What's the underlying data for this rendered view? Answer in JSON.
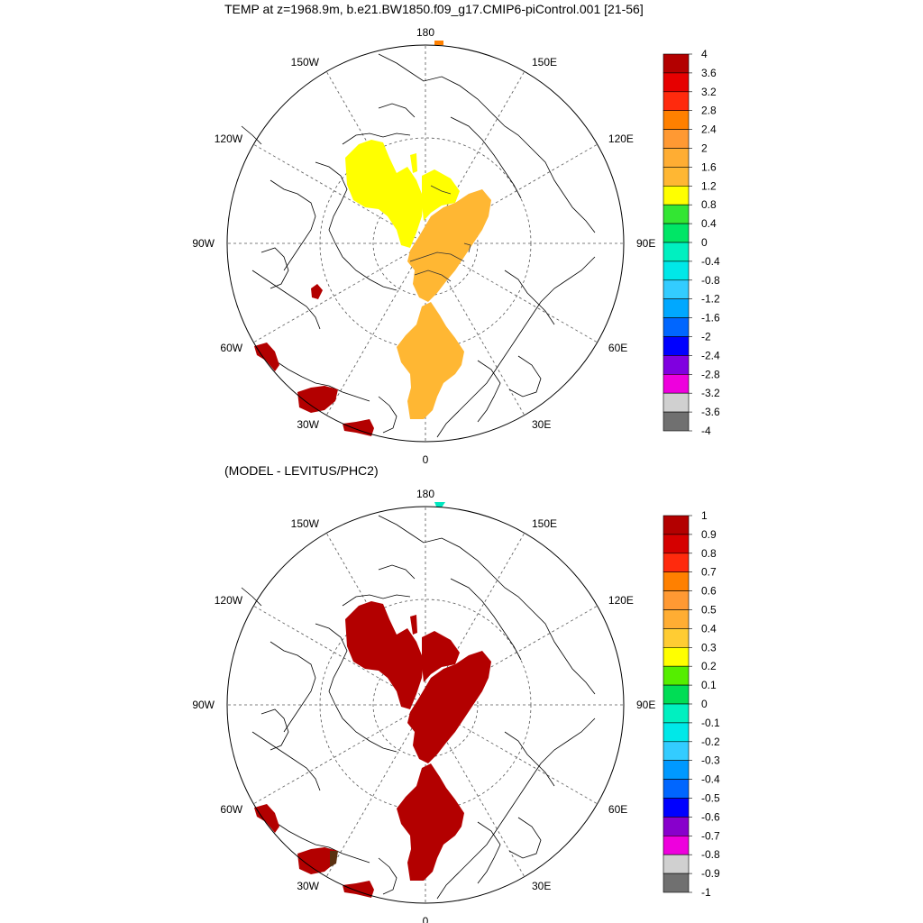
{
  "panels": [
    {
      "title": "TEMP at z=1968.9m, b.e21.BW1850.f09_g17.CMIP6-piControl.001 [21-56]",
      "longitude_labels": [
        "180",
        "150E",
        "120E",
        "90E",
        "60E",
        "30E",
        "0",
        "30W",
        "60W",
        "90W",
        "120W",
        "150W"
      ],
      "colorbar": {
        "labels": [
          "4",
          "3.6",
          "3.2",
          "2.8",
          "2.4",
          "2",
          "1.6",
          "1.2",
          "0.8",
          "0.4",
          "0",
          "-0.4",
          "-0.8",
          "-1.2",
          "-1.6",
          "-2",
          "-2.4",
          "-2.8",
          "-3.2",
          "-3.6",
          "-4"
        ],
        "colors": [
          "#b30000",
          "#e60000",
          "#ff2a0d",
          "#ff8000",
          "#ff9933",
          "#ffad33",
          "#ffb733",
          "#ffff00",
          "#33e633",
          "#00e666",
          "#00f0c0",
          "#00e8e8",
          "#33ccff",
          "#00a8ff",
          "#0066ff",
          "#0000ff",
          "#8000e0",
          "#ee00dd",
          "#d0d0d0",
          "#707070"
        ]
      }
    },
    {
      "title": "(MODEL - LEVITUS/PHC2)",
      "longitude_labels": [
        "180",
        "150E",
        "120E",
        "90E",
        "60E",
        "30E",
        "0",
        "30W",
        "60W",
        "90W",
        "120W",
        "150W"
      ],
      "colorbar": {
        "labels": [
          "1",
          "0.9",
          "0.8",
          "0.7",
          "0.6",
          "0.5",
          "0.4",
          "0.3",
          "0.2",
          "0.1",
          "0",
          "-0.1",
          "-0.2",
          "-0.3",
          "-0.4",
          "-0.5",
          "-0.6",
          "-0.7",
          "-0.8",
          "-0.9",
          "-1"
        ],
        "colors": [
          "#b30000",
          "#d50000",
          "#ff2a0d",
          "#ff8000",
          "#ff9933",
          "#ffad33",
          "#ffcc33",
          "#ffff00",
          "#55ee00",
          "#00dd55",
          "#00f0c0",
          "#00e8e8",
          "#33ccff",
          "#0099ff",
          "#0066ff",
          "#0000ff",
          "#8800cc",
          "#ee00dd",
          "#d0d0d0",
          "#707070"
        ]
      }
    }
  ]
}
